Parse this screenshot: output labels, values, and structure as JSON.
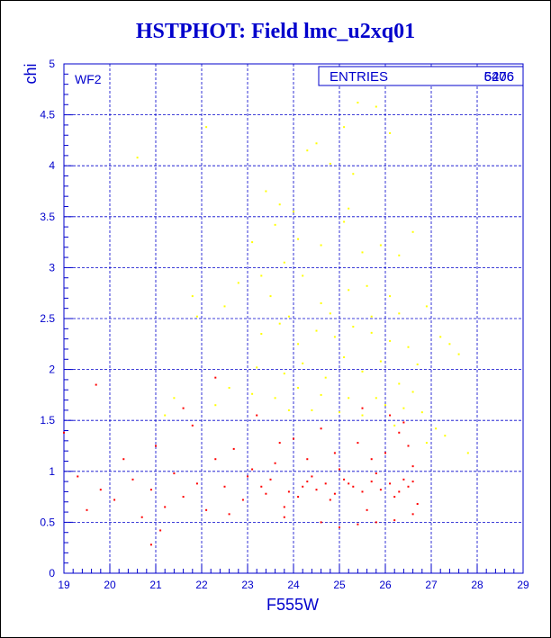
{
  "title": "HSTPHOT: Field lmc_u2xq01",
  "chart_data": {
    "type": "scatter",
    "title": "HSTPHOT: Field lmc_u2xq01",
    "xlabel": "F555W",
    "ylabel": "chi",
    "xlim": [
      19,
      29
    ],
    "ylim": [
      0,
      5
    ],
    "x_ticks": [
      "19",
      "20",
      "21",
      "22",
      "23",
      "24",
      "25",
      "26",
      "27",
      "28",
      "29"
    ],
    "y_ticks": [
      "0",
      "0.5",
      "1",
      "1.5",
      "2",
      "2.5",
      "3",
      "3.5",
      "4",
      "4.5",
      "5"
    ],
    "grid": true,
    "panel_label": "WF2",
    "stats": {
      "label": "ENTRIES",
      "values": [
        "5276",
        "6406"
      ]
    },
    "series": [
      {
        "color": "#ffff00",
        "points": [
          [
            20.6,
            4.08
          ],
          [
            22.1,
            4.38
          ],
          [
            23.4,
            3.75
          ],
          [
            23.7,
            3.62
          ],
          [
            24.3,
            4.15
          ],
          [
            24.5,
            4.22
          ],
          [
            24.8,
            4.02
          ],
          [
            25.1,
            4.38
          ],
          [
            25.4,
            4.62
          ],
          [
            25.8,
            4.58
          ],
          [
            26.1,
            4.32
          ],
          [
            25.3,
            3.92
          ],
          [
            25.2,
            3.58
          ],
          [
            24.1,
            3.28
          ],
          [
            23.6,
            3.42
          ],
          [
            23.8,
            3.05
          ],
          [
            24.6,
            3.22
          ],
          [
            25.1,
            3.45
          ],
          [
            25.5,
            3.15
          ],
          [
            25.9,
            3.22
          ],
          [
            26.3,
            3.12
          ],
          [
            26.6,
            3.35
          ],
          [
            23.1,
            3.25
          ],
          [
            22.8,
            2.85
          ],
          [
            21.8,
            2.72
          ],
          [
            21.9,
            2.52
          ],
          [
            22.5,
            2.62
          ],
          [
            23.5,
            2.72
          ],
          [
            24.2,
            2.92
          ],
          [
            24.6,
            2.65
          ],
          [
            25.2,
            2.78
          ],
          [
            25.6,
            2.82
          ],
          [
            26.1,
            2.72
          ],
          [
            26.3,
            2.55
          ],
          [
            26.9,
            2.62
          ],
          [
            23.3,
            2.35
          ],
          [
            23.7,
            2.45
          ],
          [
            24.1,
            2.25
          ],
          [
            24.5,
            2.38
          ],
          [
            24.9,
            2.32
          ],
          [
            25.3,
            2.42
          ],
          [
            25.7,
            2.36
          ],
          [
            26.1,
            2.28
          ],
          [
            26.5,
            2.22
          ],
          [
            26.7,
            2.05
          ],
          [
            27.2,
            2.32
          ],
          [
            27.4,
            2.25
          ],
          [
            27.6,
            2.15
          ],
          [
            23.2,
            2.02
          ],
          [
            23.8,
            1.96
          ],
          [
            24.2,
            2.06
          ],
          [
            24.7,
            1.92
          ],
          [
            25.1,
            2.12
          ],
          [
            25.5,
            1.98
          ],
          [
            25.9,
            2.08
          ],
          [
            26.3,
            1.86
          ],
          [
            26.6,
            1.78
          ],
          [
            22.6,
            1.82
          ],
          [
            21.4,
            1.72
          ],
          [
            22.3,
            1.65
          ],
          [
            23.1,
            1.76
          ],
          [
            23.6,
            1.72
          ],
          [
            24.1,
            1.82
          ],
          [
            24.6,
            1.75
          ],
          [
            25.2,
            1.72
          ],
          [
            25.8,
            1.72
          ],
          [
            26.4,
            1.62
          ],
          [
            26.8,
            1.58
          ],
          [
            27.1,
            1.42
          ],
          [
            27.3,
            1.35
          ],
          [
            27.8,
            1.18
          ],
          [
            21.2,
            1.55
          ],
          [
            23.9,
            1.6
          ],
          [
            24.4,
            1.6
          ],
          [
            25.0,
            1.58
          ],
          [
            25.5,
            1.55
          ],
          [
            26.0,
            1.65
          ],
          [
            26.2,
            1.45
          ],
          [
            26.9,
            1.28
          ],
          [
            24.8,
            2.55
          ],
          [
            23.9,
            2.52
          ],
          [
            25.7,
            2.52
          ],
          [
            24.0,
            3.55
          ],
          [
            23.3,
            2.92
          ]
        ]
      },
      {
        "color": "#ff0000",
        "points": [
          [
            19.0,
            1.38
          ],
          [
            19.3,
            0.95
          ],
          [
            19.5,
            0.62
          ],
          [
            19.7,
            1.85
          ],
          [
            19.8,
            0.82
          ],
          [
            20.1,
            0.72
          ],
          [
            20.3,
            1.12
          ],
          [
            20.5,
            0.92
          ],
          [
            20.7,
            0.55
          ],
          [
            20.9,
            0.82
          ],
          [
            21.0,
            1.25
          ],
          [
            21.2,
            0.65
          ],
          [
            21.4,
            0.98
          ],
          [
            21.6,
            0.75
          ],
          [
            21.8,
            1.45
          ],
          [
            21.9,
            0.88
          ],
          [
            22.1,
            0.62
          ],
          [
            22.3,
            1.12
          ],
          [
            22.5,
            0.85
          ],
          [
            22.7,
            1.22
          ],
          [
            22.9,
            0.72
          ],
          [
            23.0,
            0.95
          ],
          [
            23.2,
            1.55
          ],
          [
            23.4,
            0.78
          ],
          [
            23.6,
            1.08
          ],
          [
            23.8,
            0.65
          ],
          [
            24.0,
            1.32
          ],
          [
            24.2,
            0.85
          ],
          [
            24.4,
            0.95
          ],
          [
            24.6,
            1.42
          ],
          [
            24.8,
            0.72
          ],
          [
            25.0,
            1.02
          ],
          [
            25.2,
            0.88
          ],
          [
            25.4,
            1.28
          ],
          [
            25.6,
            0.62
          ],
          [
            25.8,
            0.98
          ],
          [
            26.0,
            1.18
          ],
          [
            26.2,
            0.75
          ],
          [
            26.4,
            0.92
          ],
          [
            26.6,
            1.05
          ],
          [
            26.7,
            0.68
          ],
          [
            23.3,
            0.85
          ],
          [
            23.5,
            0.92
          ],
          [
            23.9,
            0.8
          ],
          [
            24.1,
            0.75
          ],
          [
            24.3,
            0.9
          ],
          [
            24.5,
            0.82
          ],
          [
            24.7,
            0.88
          ],
          [
            24.9,
            0.78
          ],
          [
            25.1,
            0.92
          ],
          [
            25.3,
            0.85
          ],
          [
            25.5,
            0.8
          ],
          [
            25.7,
            0.9
          ],
          [
            25.9,
            0.82
          ],
          [
            26.1,
            0.88
          ],
          [
            26.3,
            0.8
          ],
          [
            26.5,
            0.85
          ],
          [
            26.6,
            0.9
          ],
          [
            25.0,
            0.45
          ],
          [
            25.4,
            0.48
          ],
          [
            25.8,
            0.5
          ],
          [
            26.2,
            0.52
          ],
          [
            24.6,
            0.5
          ],
          [
            23.8,
            0.55
          ],
          [
            22.6,
            0.58
          ],
          [
            21.1,
            0.42
          ],
          [
            20.9,
            0.28
          ],
          [
            25.5,
            1.62
          ],
          [
            26.1,
            1.55
          ],
          [
            26.3,
            1.38
          ],
          [
            26.5,
            1.25
          ],
          [
            22.3,
            1.92
          ],
          [
            21.6,
            1.62
          ],
          [
            23.7,
            1.28
          ],
          [
            24.9,
            1.18
          ],
          [
            25.7,
            1.12
          ],
          [
            26.6,
            0.58
          ],
          [
            26.4,
            1.48
          ],
          [
            23.1,
            1.02
          ],
          [
            24.3,
            1.12
          ]
        ]
      }
    ]
  }
}
